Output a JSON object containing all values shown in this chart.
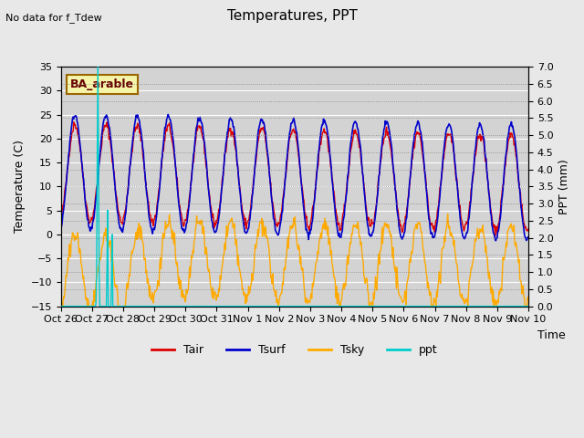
{
  "title": "Temperatures, PPT",
  "subtitle": "No data for f_Tdew",
  "box_label": "BA_arable",
  "xlabel": "Time",
  "ylabel_left": "Temperature (C)",
  "ylabel_right": "PPT (mm)",
  "ylim_left": [
    -15,
    35
  ],
  "ylim_right": [
    0.0,
    7.0
  ],
  "yticks_left": [
    -15,
    -10,
    -5,
    0,
    5,
    10,
    15,
    20,
    25,
    30,
    35
  ],
  "yticks_right": [
    0.0,
    0.5,
    1.0,
    1.5,
    2.0,
    2.5,
    3.0,
    3.5,
    4.0,
    4.5,
    5.0,
    5.5,
    6.0,
    6.5,
    7.0
  ],
  "background_color": "#e8e8e8",
  "plot_bg_color": "#d3d3d3",
  "grid_color": "#ffffff",
  "colors": {
    "Tair": "#dd0000",
    "Tsurf": "#0000cc",
    "Tsky": "#ffaa00",
    "ppt": "#00cccc"
  },
  "xtick_labels": [
    "Oct 26",
    "Oct 27",
    "Oct 28",
    "Oct 29",
    "Oct 30",
    "Oct 31",
    "Nov 1",
    "Nov 2",
    "Nov 3",
    "Nov 4",
    "Nov 5",
    "Nov 6",
    "Nov 7",
    "Nov 8",
    "Nov 9",
    "Nov 10"
  ],
  "n_days": 15,
  "pts_per_day": 48
}
